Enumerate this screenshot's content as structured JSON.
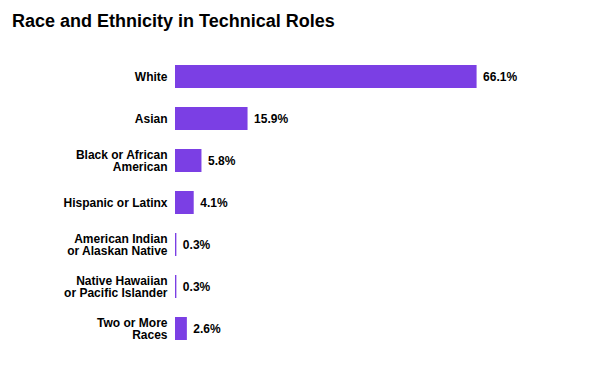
{
  "chart_data": {
    "type": "bar",
    "orientation": "horizontal",
    "title": "Race and Ethnicity in Technical Roles",
    "categories": [
      "White",
      "Asian",
      "Black or African\nAmerican",
      "Hispanic or Latinx",
      "American Indian\nor Alaskan Native",
      "Native Hawaiian\nor Pacific Islander",
      "Two or More\nRaces"
    ],
    "values": [
      66.1,
      15.9,
      5.8,
      4.1,
      0.3,
      0.3,
      2.6
    ],
    "value_labels": [
      "66.1%",
      "15.9%",
      "5.8%",
      "4.1%",
      "0.3%",
      "0.3%",
      "2.6%"
    ],
    "data_labels": true,
    "color": "#7b3fe4",
    "xlim": [
      0,
      80
    ],
    "tick_labels": "y",
    "grid": false
  }
}
